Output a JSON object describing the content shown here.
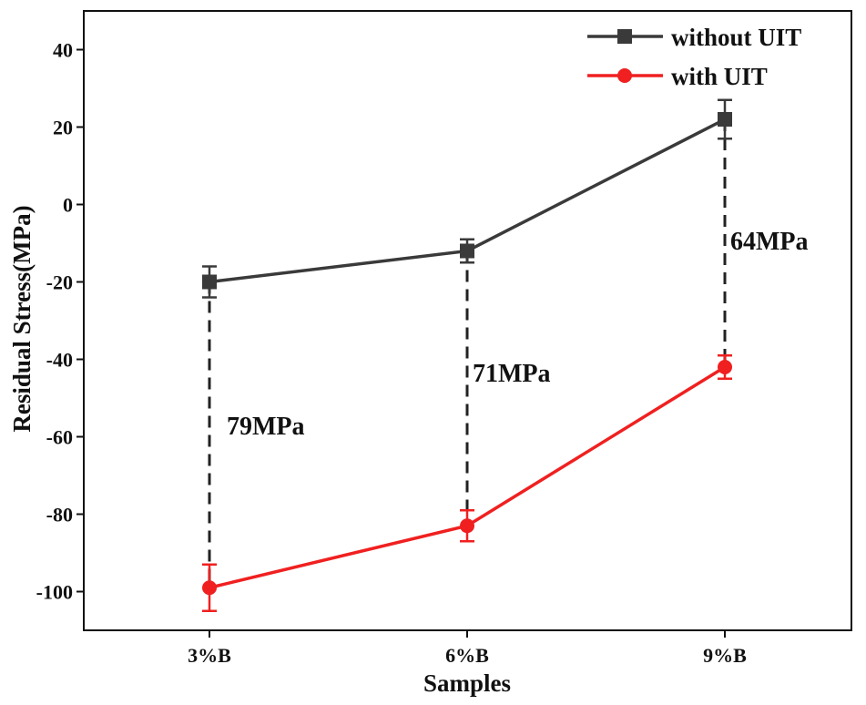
{
  "chart_data": {
    "type": "line",
    "categories": [
      "3%B",
      "6%B",
      "9%B"
    ],
    "xlabel": "Samples",
    "ylabel": "Residual Stress(MPa)",
    "ylim": [
      -110,
      50
    ],
    "yticks": [
      40,
      20,
      0,
      -20,
      -40,
      -60,
      -80,
      -100
    ],
    "grid": false,
    "legend_position": "top-right",
    "series": [
      {
        "name": "without UIT",
        "color": "#3a3a3a",
        "marker": "square",
        "values": [
          -20,
          -12,
          22
        ],
        "errors": [
          4,
          3,
          5
        ]
      },
      {
        "name": "with UIT",
        "color": "#f02020",
        "marker": "circle",
        "values": [
          -99,
          -83,
          -42
        ],
        "errors": [
          6,
          4,
          3
        ]
      }
    ],
    "annotations": [
      {
        "text": "79MPa",
        "category": "3%B"
      },
      {
        "text": "71MPa",
        "category": "6%B"
      },
      {
        "text": "64MPa",
        "category": "9%B"
      }
    ]
  }
}
